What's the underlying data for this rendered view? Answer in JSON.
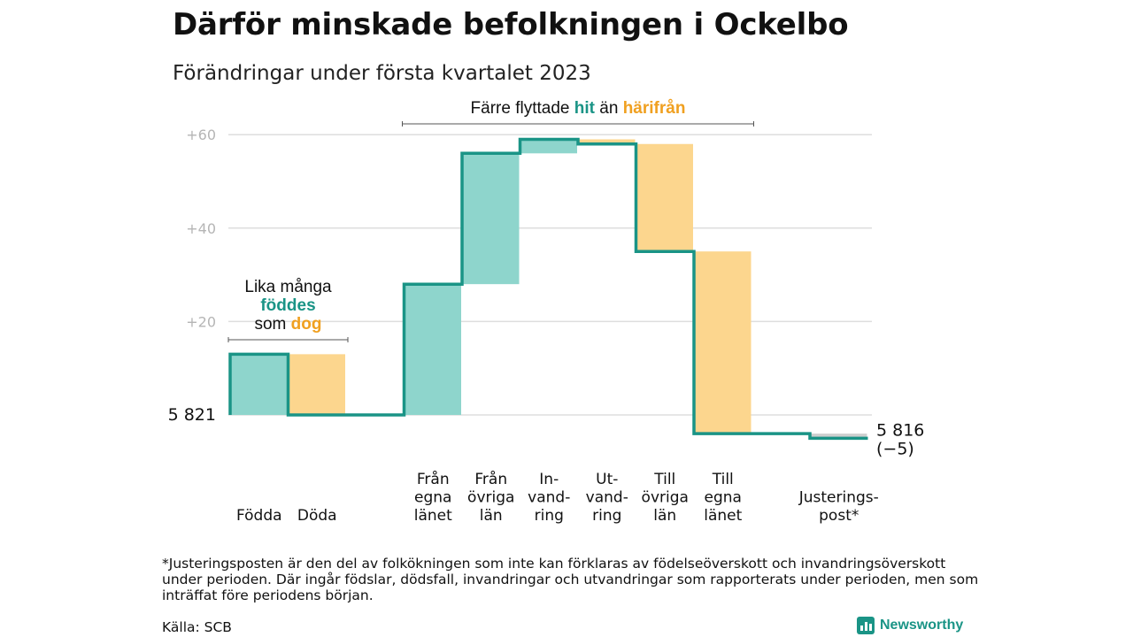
{
  "title": "Därför minskade befolkningen i Ockelbo",
  "subtitle": "Förändringar under första kvartalet 2023",
  "chart_data": {
    "type": "waterfall",
    "start_value": 5821,
    "start_label": "5 821",
    "end_value": 5816,
    "end_label": "5 816",
    "end_change_label": "(−5)",
    "yticks": [
      {
        "value": 60,
        "label": "+60"
      },
      {
        "value": 40,
        "label": "+40"
      },
      {
        "value": 20,
        "label": "+20"
      }
    ],
    "ylim": [
      -6,
      62
    ],
    "steps": [
      {
        "lines": [
          "Födda"
        ],
        "delta": 13,
        "kind": "plus"
      },
      {
        "lines": [
          "Döda"
        ],
        "delta": -13,
        "kind": "minus"
      },
      {
        "lines": [],
        "delta": 0,
        "kind": "gap"
      },
      {
        "lines": [
          "Från",
          "egna",
          "länet"
        ],
        "delta": 28,
        "kind": "plus"
      },
      {
        "lines": [
          "Från",
          "övriga",
          "län"
        ],
        "delta": 28,
        "kind": "plus"
      },
      {
        "lines": [
          "In-",
          "vand-",
          "ring"
        ],
        "delta": 3,
        "kind": "plus"
      },
      {
        "lines": [
          "Ut-",
          "vand-",
          "ring"
        ],
        "delta": -1,
        "kind": "minus"
      },
      {
        "lines": [
          "Till",
          "övriga",
          "län"
        ],
        "delta": -23,
        "kind": "minus"
      },
      {
        "lines": [
          "Till",
          "egna",
          "länet"
        ],
        "delta": -39,
        "kind": "minus"
      },
      {
        "lines": [],
        "delta": 0,
        "kind": "gap"
      },
      {
        "lines": [
          "Justerings-",
          "post*"
        ],
        "delta": -1,
        "kind": "adjust"
      }
    ],
    "annotations": [
      {
        "lines": [
          [
            {
              "text": "Lika många",
              "style": "plain"
            }
          ],
          [
            {
              "text": "föddes",
              "style": "hit"
            }
          ],
          [
            {
              "text": "som ",
              "style": "plain"
            },
            {
              "text": "dog",
              "style": "har"
            }
          ]
        ],
        "from_step": 0,
        "to_step": 1
      },
      {
        "lines": [
          [
            {
              "text": "Färre flyttade ",
              "style": "plain"
            },
            {
              "text": "hit",
              "style": "hit"
            },
            {
              "text": " än ",
              "style": "plain"
            },
            {
              "text": "härifrån",
              "style": "har"
            }
          ]
        ],
        "from_step": 3,
        "to_step": 8
      }
    ],
    "colors": {
      "plus": "#8ed5cc",
      "minus": "#fcd68e",
      "adjust": "#cfcfcf",
      "line": "#1a9486",
      "grid": "#dedede"
    }
  },
  "footnote": "*Justeringsposten är den del av folkökningen som inte kan förklaras av födelseöverskott och invandringsöverskott under perioden. Där ingår födslar, dödsfall, invandringar och utvandringar som rapporterats under perioden, men som inträffat före periodens början.",
  "source": "Källa: SCB",
  "brand": "Newsworthy"
}
